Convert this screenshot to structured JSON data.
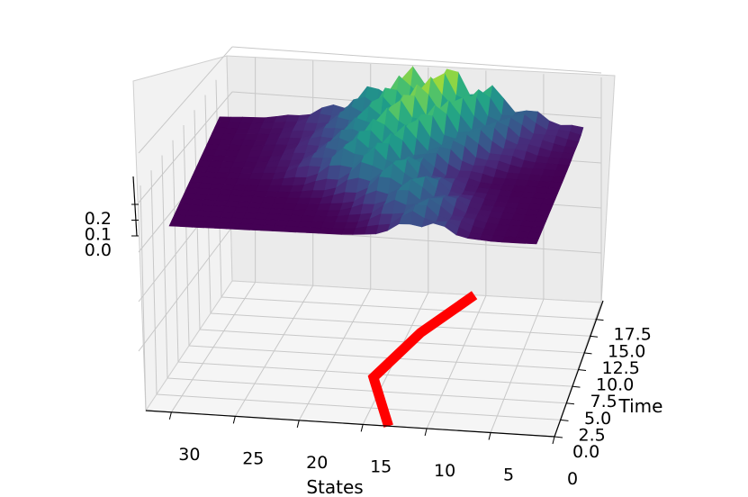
{
  "chart_data": {
    "type": "surface3d",
    "title": "",
    "xlabel": "States",
    "ylabel": "Time",
    "zlabel": "",
    "x_ticks": [
      "30",
      "25",
      "20",
      "15",
      "10",
      "5",
      "0"
    ],
    "y_ticks": [
      "0.0",
      "2.5",
      "5.0",
      "7.5",
      "10.0",
      "12.5",
      "15.0",
      "17.5"
    ],
    "z_ticks": [
      "0.2",
      "0.1",
      "0.0"
    ],
    "xlim": [
      0,
      32
    ],
    "ylim": [
      0,
      20
    ],
    "zlim": [
      0,
      0.25
    ],
    "colormap": "viridis",
    "surface": {
      "description_series": [
        {
          "time": 0.0,
          "peak_state": 10,
          "peak_height": 0.08
        },
        {
          "time": 5.0,
          "peak_state": 12,
          "peak_height": 0.12
        },
        {
          "time": 10.0,
          "peak_state": 16,
          "peak_height": 0.16
        },
        {
          "time": 15.0,
          "peak_state": 14,
          "peak_height": 0.22
        },
        {
          "time": 20.0,
          "peak_state": 13,
          "peak_height": 0.25
        }
      ]
    },
    "trajectory": {
      "color": "#ff0000",
      "points": [
        {
          "state": 13,
          "time": 0.0
        },
        {
          "state": 16,
          "time": 7.0
        },
        {
          "state": 14,
          "time": 14.0
        },
        {
          "state": 11,
          "time": 20.0
        }
      ]
    },
    "grid": true
  }
}
